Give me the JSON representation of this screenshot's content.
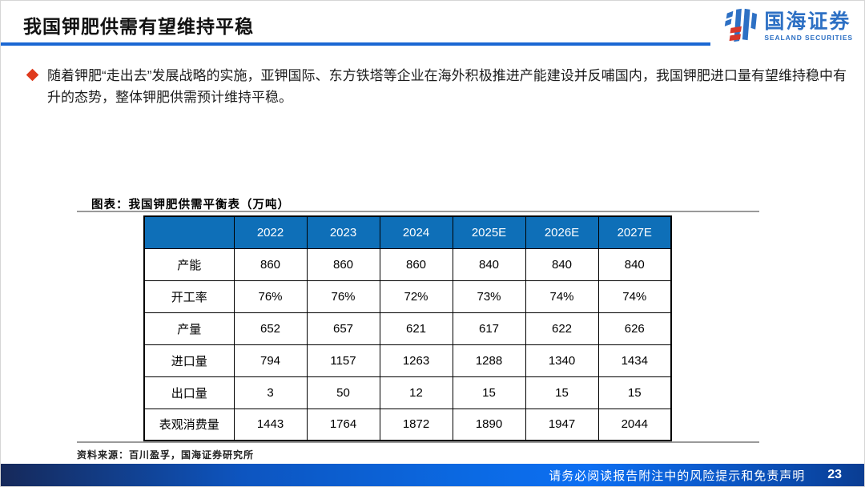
{
  "header": {
    "title": "我国钾肥供需有望维持平稳",
    "logo": {
      "cn": "国海证券",
      "en": "SEALAND SECURITIES"
    }
  },
  "bullet": {
    "text": "随着钾肥“走出去”发展战略的实施，亚钾国际、东方铁塔等企业在海外积极推进产能建设并反哺国内，我国钾肥进口量有望维持稳中有升的态势，整体钾肥供需预计维持平稳。"
  },
  "figure": {
    "caption": "图表：我国钾肥供需平衡表（万吨）",
    "source": "资料来源：百川盈孚，国海证券研究所"
  },
  "chart_data": {
    "type": "table",
    "title": "我国钾肥供需平衡表（万吨）",
    "unit": "万吨",
    "columns": [
      "",
      "2022",
      "2023",
      "2024",
      "2025E",
      "2026E",
      "2027E"
    ],
    "rows": [
      {
        "label": "产能",
        "values": [
          "860",
          "860",
          "860",
          "840",
          "840",
          "840"
        ]
      },
      {
        "label": "开工率",
        "values": [
          "76%",
          "76%",
          "72%",
          "73%",
          "74%",
          "74%"
        ]
      },
      {
        "label": "产量",
        "values": [
          "652",
          "657",
          "621",
          "617",
          "622",
          "626"
        ]
      },
      {
        "label": "进口量",
        "values": [
          "794",
          "1157",
          "1263",
          "1288",
          "1340",
          "1434"
        ]
      },
      {
        "label": "出口量",
        "values": [
          "3",
          "50",
          "12",
          "15",
          "15",
          "15"
        ]
      },
      {
        "label": "表观消费量",
        "values": [
          "1443",
          "1764",
          "1872",
          "1890",
          "1947",
          "2044"
        ]
      }
    ]
  },
  "footer": {
    "disclaimer": "请务必阅读报告附注中的风险提示和免责声明",
    "page": "23"
  },
  "colors": {
    "accent_blue": "#1a67d3",
    "table_header_blue": "#0e6fb8",
    "bullet_red": "#df3a1d",
    "logo_blue": "#2d70c4",
    "logo_red": "#d6372a",
    "footer_blue_bright": "#0d6ff2",
    "footer_blue_dark": "#16295a"
  }
}
